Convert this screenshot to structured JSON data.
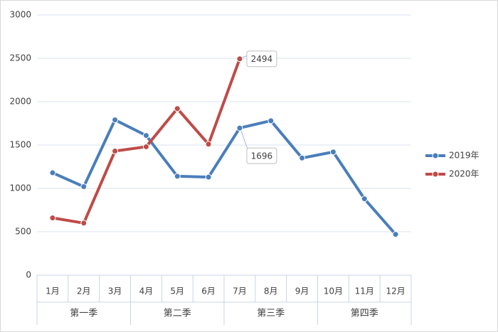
{
  "chart_data": {
    "type": "line",
    "categories": [
      "1月",
      "2月",
      "3月",
      "4月",
      "5月",
      "6月",
      "7月",
      "8月",
      "9月",
      "10月",
      "11月",
      "12月"
    ],
    "groups": [
      "第一季",
      "第二季",
      "第三季",
      "第四季"
    ],
    "series": [
      {
        "name": "2019年",
        "color": "#4a7ebb",
        "values": [
          1180,
          1020,
          1790,
          1610,
          1140,
          1130,
          1696,
          1780,
          1350,
          1420,
          880,
          470
        ],
        "value_labels": [
          null,
          null,
          null,
          null,
          null,
          null,
          "1696",
          null,
          null,
          null,
          null,
          null
        ]
      },
      {
        "name": "2020年",
        "color": "#be4b48",
        "values": [
          660,
          600,
          1430,
          1480,
          1920,
          1510,
          2494,
          null,
          null,
          null,
          null,
          null
        ],
        "value_labels": [
          null,
          null,
          null,
          null,
          null,
          null,
          "2494",
          null,
          null,
          null,
          null,
          null
        ]
      }
    ],
    "ylim": [
      0,
      3000
    ],
    "yticks": [
      0,
      500,
      1000,
      1500,
      2000,
      2500,
      3000
    ],
    "grid": true,
    "legend": "right"
  }
}
